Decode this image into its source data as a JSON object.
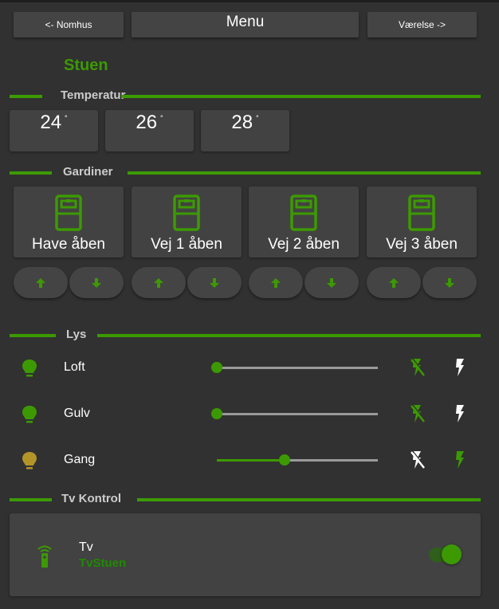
{
  "header": {
    "prev_label": "<- Nomhus",
    "menu_label": "Menu",
    "next_label": "Værelse ->"
  },
  "room_title": "Stuen",
  "temperature": {
    "title": "Temperatur",
    "unit": "°",
    "values": [
      "24",
      "26",
      "28"
    ]
  },
  "curtains": {
    "title": "Gardiner",
    "items": [
      {
        "label": "Have åben"
      },
      {
        "label": "Vej 1 åben"
      },
      {
        "label": "Vej 2 åben"
      },
      {
        "label": "Vej 3 åben"
      }
    ]
  },
  "lights": {
    "title": "Lys",
    "items": [
      {
        "label": "Loft",
        "level_percent": 0,
        "bulb_color": "#3c9a00",
        "off_active": true
      },
      {
        "label": "Gulv",
        "level_percent": 0,
        "bulb_color": "#3c9a00",
        "off_active": true
      },
      {
        "label": "Gang",
        "level_percent": 42,
        "bulb_color": "#b39429",
        "off_active": false
      }
    ]
  },
  "tv": {
    "title": "Tv Kontrol",
    "name": "Tv",
    "entity": "TvStuen",
    "on": true
  },
  "colors": {
    "accent": "#3c9a00",
    "background": "#313131",
    "card": "#424242",
    "warm_bulb": "#b39429"
  }
}
